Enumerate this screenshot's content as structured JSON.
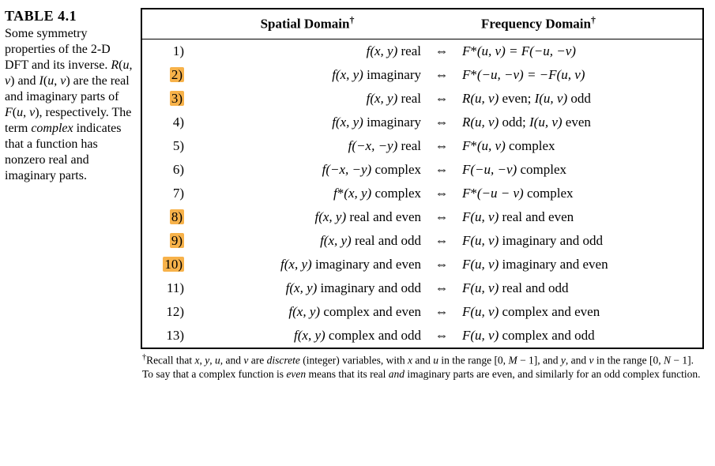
{
  "caption": {
    "label": "TABLE 4.1",
    "text_html": "Some symmetry properties of the 2-D DFT and its inverse. <span class=\"ital\">R</span>(<span class=\"ital\">u</span>, <span class=\"ital\">v</span>) and <span class=\"ital\">I</span>(<span class=\"ital\">u</span>, <span class=\"ital\">v</span>) are the real and imaginary parts of <span class=\"ital\">F</span>(<span class=\"ital\">u</span>, <span class=\"ital\">v</span>), respectively. The term <span class=\"ital\">complex</span> indicates that a function has nonzero real and imaginary parts."
  },
  "headers": {
    "spatial": "Spatial Domain",
    "frequency": "Frequency Domain"
  },
  "arrow_symbol": "⇔",
  "highlight_color": "#f7b24a",
  "rows": [
    {
      "idx": "1)",
      "highlight": false,
      "spatial_html": "f(x, y) <span class=\"upright\">real</span>",
      "freq_html": "F<span class=\"upright\">*</span>(u, v) = F(−u, −v)"
    },
    {
      "idx": "2)",
      "highlight": true,
      "spatial_html": "f(x, y) <span class=\"upright\">imaginary</span>",
      "freq_html": "F<span class=\"upright\">*</span>(−u, −v) = −F(u, v)"
    },
    {
      "idx": "3)",
      "highlight": true,
      "spatial_html": "f(x, y) <span class=\"upright\">real</span>",
      "freq_html": "R(u, v) <span class=\"upright\">even;</span> I(u, v) <span class=\"upright\">odd</span>"
    },
    {
      "idx": "4)",
      "highlight": false,
      "spatial_html": "f(x, y) <span class=\"upright\">imaginary</span>",
      "freq_html": "R(u, v) <span class=\"upright\">odd;</span> I(u, v) <span class=\"upright\">even</span>"
    },
    {
      "idx": "5)",
      "highlight": false,
      "spatial_html": "f(−x, −y) <span class=\"upright\">real</span>",
      "freq_html": "F<span class=\"upright\">*</span>(u, v) <span class=\"upright\">complex</span>"
    },
    {
      "idx": "6)",
      "highlight": false,
      "spatial_html": "f(−x, −y) <span class=\"upright\">complex</span>",
      "freq_html": "F(−u, −v) <span class=\"upright\">complex</span>"
    },
    {
      "idx": "7)",
      "highlight": false,
      "spatial_html": "f<span class=\"upright\">*</span>(x, y) <span class=\"upright\">complex</span>",
      "freq_html": "F<span class=\"upright\">*</span>(−u − v) <span class=\"upright\">complex</span>"
    },
    {
      "idx": "8)",
      "highlight": true,
      "spatial_html": "f(x, y) <span class=\"upright\">real and even</span>",
      "freq_html": "F(u, v) <span class=\"upright\">real and even</span>"
    },
    {
      "idx": "9)",
      "highlight": true,
      "spatial_html": "f(x, y) <span class=\"upright\">real and odd</span>",
      "freq_html": "F(u, v) <span class=\"upright\">imaginary and odd</span>"
    },
    {
      "idx": "10)",
      "highlight": true,
      "spatial_html": "f(x, y) <span class=\"upright\">imaginary and even</span>",
      "freq_html": "F(u, v) <span class=\"upright\">imaginary and even</span>"
    },
    {
      "idx": "11)",
      "highlight": false,
      "spatial_html": "f(x, y) <span class=\"upright\">imaginary and odd</span>",
      "freq_html": "F(u, v) <span class=\"upright\">real and odd</span>"
    },
    {
      "idx": "12)",
      "highlight": false,
      "spatial_html": "f(x, y) <span class=\"upright\">complex and even</span>",
      "freq_html": "F(u, v) <span class=\"upright\">complex and even</span>"
    },
    {
      "idx": "13)",
      "highlight": false,
      "spatial_html": "f(x, y) <span class=\"upright\">complex and odd</span>",
      "freq_html": "F(u, v) <span class=\"upright\">complex and odd</span>"
    }
  ],
  "footnote_html": "<span class=\"dag\">†</span>Recall that <span class=\"ital\">x</span>, <span class=\"ital\">y</span>, <span class=\"ital\">u</span>, and <span class=\"ital\">v</span> are <span class=\"ital\">discrete</span> (integer) variables, with <span class=\"ital\">x</span> and <span class=\"ital\">u</span> in the range [0, <span class=\"ital\">M</span> − 1], and <span class=\"ital\">y</span>, and <span class=\"ital\">v</span> in the range [0, <span class=\"ital\">N</span> − 1]. To say that a complex function is <span class=\"ital\">even</span> means that its real <span class=\"ital\">and</span> imaginary parts are even, and similarly for an odd complex function."
}
